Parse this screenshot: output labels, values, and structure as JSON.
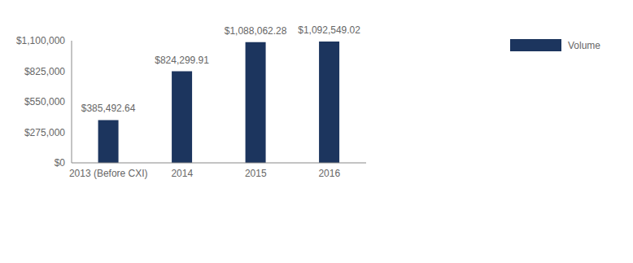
{
  "chart_data": {
    "type": "bar",
    "categories": [
      "2013 (Before CXI)",
      "2014",
      "2015",
      "2016"
    ],
    "series": [
      {
        "name": "Volume",
        "color": "#1c355e",
        "values": [
          385492.64,
          824299.91,
          1088062.28,
          1092549.02
        ],
        "value_labels": [
          "$385,492.64",
          "$824,299.91",
          "$1,088,062.28",
          "$1,092,549.02"
        ]
      }
    ],
    "ylim": [
      0,
      1100000
    ],
    "yticks": [
      {
        "value": 0,
        "label": "$0"
      },
      {
        "value": 275000,
        "label": "$275,000"
      },
      {
        "value": 550000,
        "label": "$550,000"
      },
      {
        "value": 825000,
        "label": "$825,000"
      },
      {
        "value": 1100000,
        "label": "$1,100,000"
      }
    ],
    "grid": false,
    "data_labels": true,
    "legend": "top-right"
  }
}
